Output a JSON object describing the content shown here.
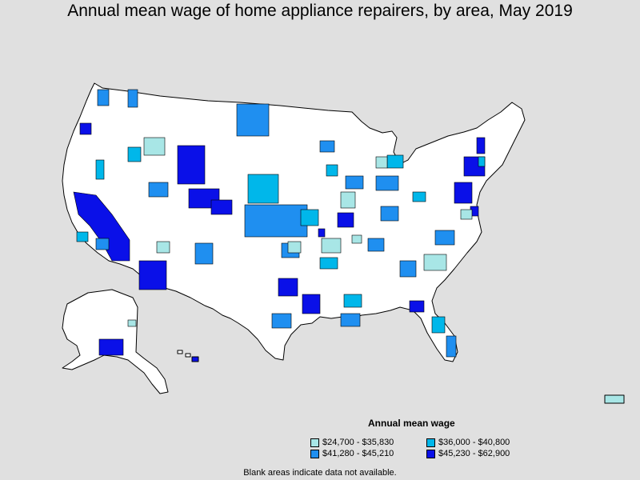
{
  "title": "Annual mean wage of home appliance repairers, by area, May 2019",
  "legend": {
    "title": "Annual mean wage",
    "items": [
      {
        "label": "$24,700 - $35,830",
        "color": "#a8e6e6"
      },
      {
        "label": "$36,000 - $40,800",
        "color": "#00b7ea"
      },
      {
        "label": "$41,280 - $45,210",
        "color": "#1f8ff0"
      },
      {
        "label": "$45,230 - $62,900",
        "color": "#0a10e8"
      }
    ]
  },
  "footnote": "Blank areas indicate data not available.",
  "colors": {
    "background": "#e0e0e0",
    "land": "#ffffff",
    "border": "#000000"
  }
}
